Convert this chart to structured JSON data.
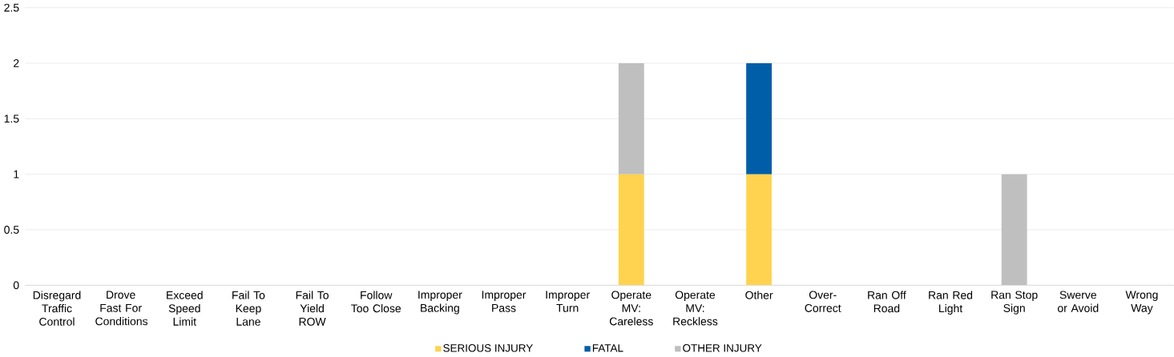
{
  "chart_data": {
    "type": "bar",
    "stacked": true,
    "categories": [
      "Disregard Traffic Control",
      "Drove Fast For Conditions",
      "Exceed Speed Limit",
      "Fail To Keep Lane",
      "Fail To Yield ROW",
      "Follow Too Close",
      "Improper Backing",
      "Improper Pass",
      "Improper Turn",
      "Operate MV: Careless",
      "Operate MV: Reckless",
      "Other",
      "Over-Correct",
      "Ran Off Road",
      "Ran Red Light",
      "Ran Stop Sign",
      "Swerve or Avoid",
      "Wrong Way"
    ],
    "series": [
      {
        "name": "SERIOUS INJURY",
        "color": "#ffd34f",
        "values": [
          0,
          0,
          0,
          0,
          0,
          0,
          0,
          0,
          0,
          1,
          0,
          1,
          0,
          0,
          0,
          0,
          0,
          0
        ]
      },
      {
        "name": "FATAL",
        "color": "#005ea8",
        "values": [
          0,
          0,
          0,
          0,
          0,
          0,
          0,
          0,
          0,
          0,
          0,
          1,
          0,
          0,
          0,
          0,
          0,
          0
        ]
      },
      {
        "name": "OTHER INJURY",
        "color": "#bfbfbf",
        "values": [
          0,
          0,
          0,
          0,
          0,
          0,
          0,
          0,
          0,
          1,
          0,
          0,
          0,
          0,
          0,
          1,
          0,
          0
        ]
      }
    ],
    "ylim": [
      0,
      2.5
    ],
    "yticks": [
      0,
      0.5,
      1,
      1.5,
      2,
      2.5
    ],
    "grid": "y",
    "legend": "bottom"
  }
}
